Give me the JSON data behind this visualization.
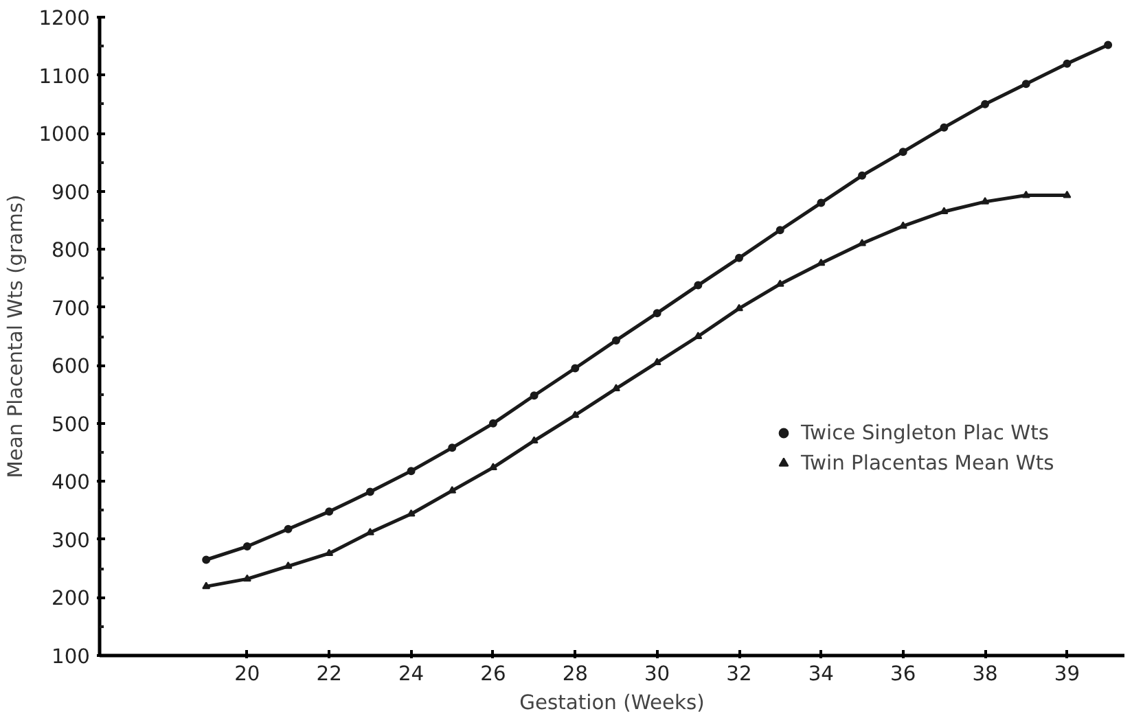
{
  "chart_data": {
    "type": "line",
    "xlabel": "Gestation (Weeks)",
    "ylabel": "Mean Placental Wts (grams)",
    "categories": [
      null,
      "20",
      null,
      "22",
      null,
      "24",
      null,
      "26",
      null,
      "28",
      null,
      "30",
      null,
      "32",
      null,
      "34",
      null,
      "36",
      null,
      "38",
      null,
      "39",
      null
    ],
    "ylim": [
      100,
      1200
    ],
    "yticks": [
      100,
      200,
      300,
      400,
      500,
      600,
      700,
      800,
      900,
      1000,
      1100,
      1200
    ],
    "legend": "right",
    "line_style": "solid",
    "series": [
      {
        "name": "Twice Singleton Plac Wts",
        "color": "#1a1a1a",
        "marker": "circle",
        "values": [
          265,
          288,
          318,
          348,
          382,
          418,
          458,
          500,
          548,
          595,
          643,
          690,
          738,
          785,
          833,
          880,
          927,
          968,
          1010,
          1050,
          1085,
          1120,
          1152
        ]
      },
      {
        "name": "Twin Placentas Mean Wts",
        "color": "#1a1a1a",
        "marker": "triangle",
        "values": [
          219,
          232,
          254,
          276,
          312,
          344,
          384,
          424,
          470,
          514,
          560,
          605,
          650,
          698,
          740,
          776,
          810,
          840,
          865,
          882,
          893,
          893,
          null
        ]
      }
    ]
  }
}
